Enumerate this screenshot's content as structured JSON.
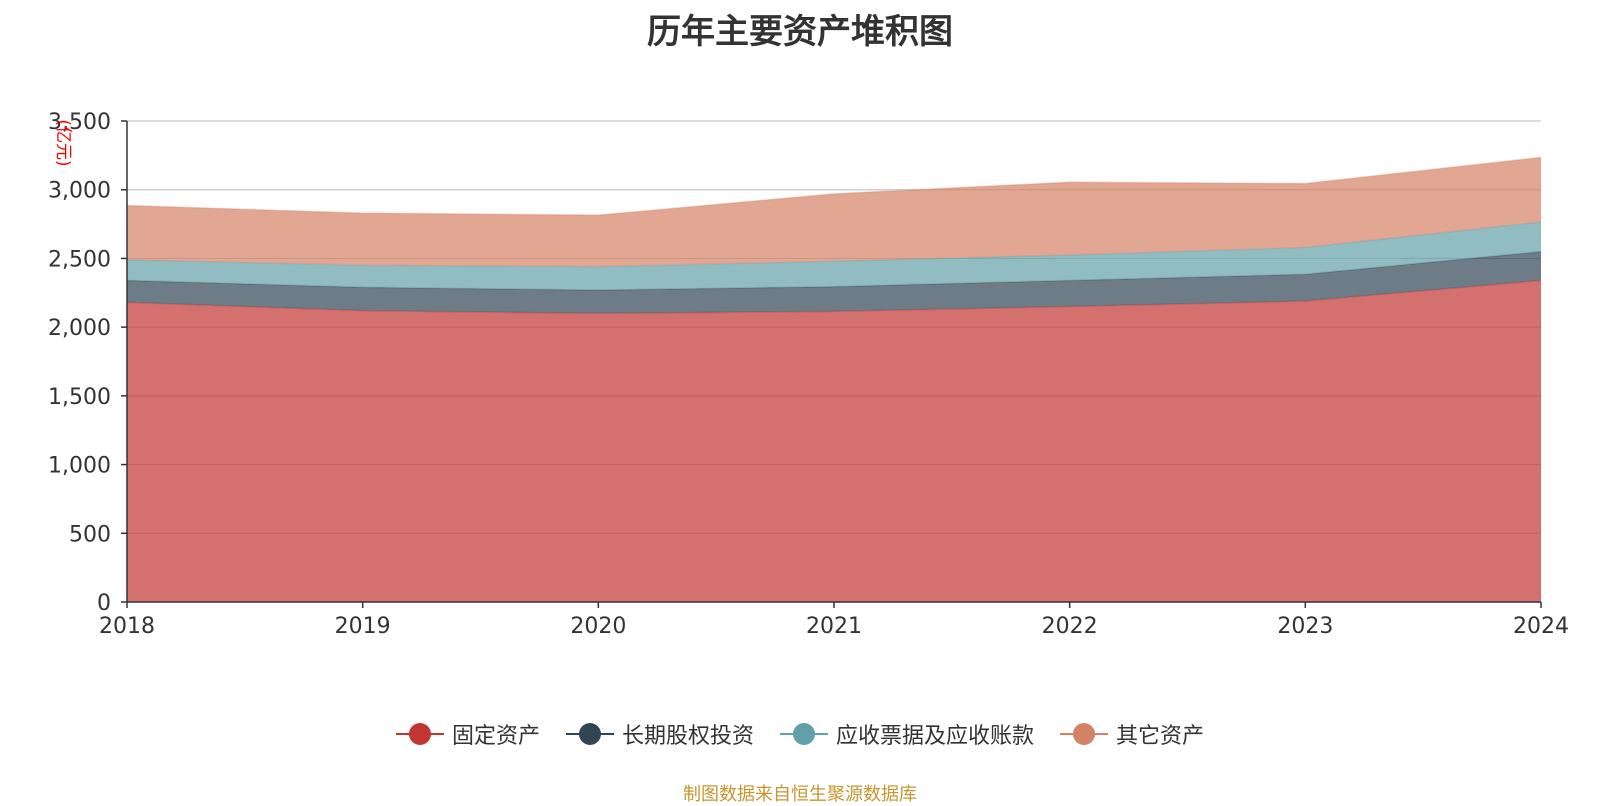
{
  "chart_data": {
    "type": "area",
    "stacked": true,
    "title": "历年主要资产堆积图",
    "ylabel": "(亿元)",
    "xlabel": "",
    "x": [
      "2018",
      "2019",
      "2020",
      "2021",
      "2022",
      "2023",
      "2024"
    ],
    "ylim": [
      0,
      3500
    ],
    "yticks": [
      "0",
      "500",
      "1,000",
      "1,500",
      "2,000",
      "2,500",
      "3,000",
      "3,500"
    ],
    "grid": true,
    "legend_position": "bottom",
    "series": [
      {
        "name": "固定资产",
        "color": "#c23531",
        "values": [
          2180,
          2120,
          2100,
          2115,
          2150,
          2190,
          2340
        ]
      },
      {
        "name": "长期股权投资",
        "color": "#2f4554",
        "values": [
          160,
          170,
          170,
          180,
          190,
          195,
          210
        ]
      },
      {
        "name": "应收票据及应收账款",
        "color": "#61a0a8",
        "values": [
          150,
          160,
          170,
          185,
          185,
          195,
          215
        ]
      },
      {
        "name": "其它资产",
        "color": "#d48265",
        "values": [
          395,
          380,
          375,
          490,
          530,
          465,
          470
        ]
      }
    ]
  },
  "footer": {
    "source_note": "制图数据来自恒生聚源数据库"
  }
}
